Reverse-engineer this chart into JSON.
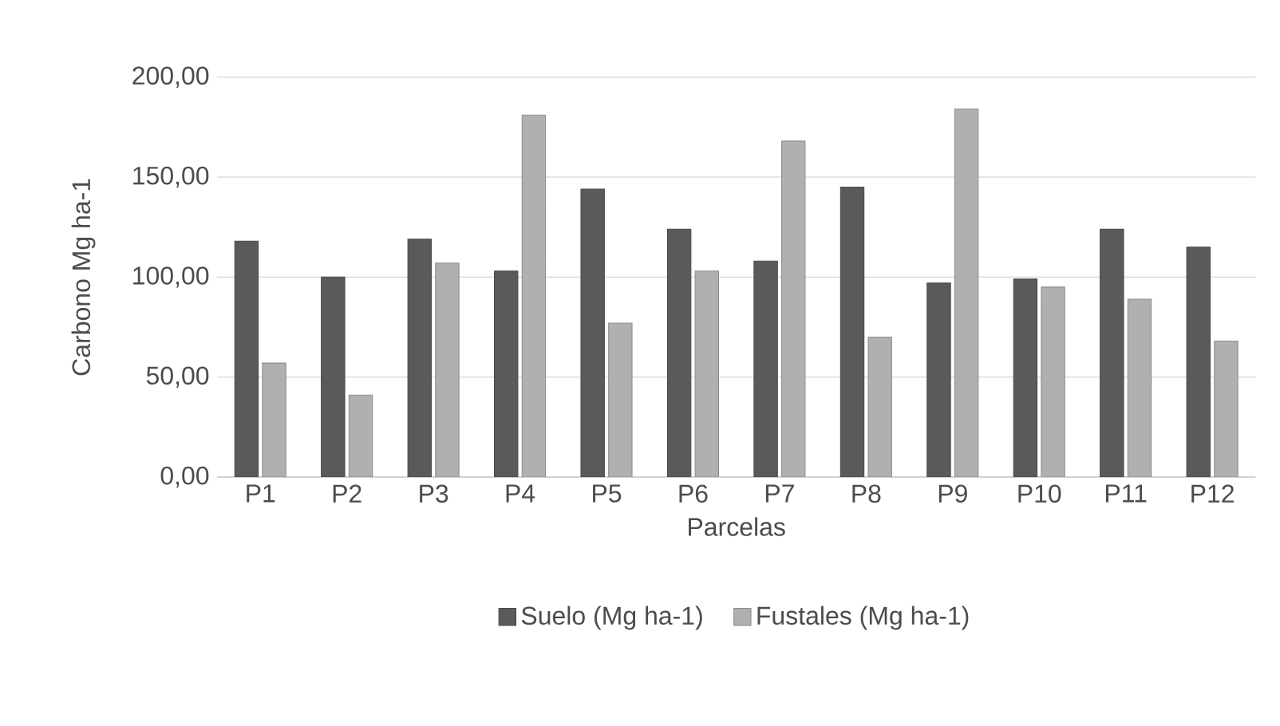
{
  "chart_data": {
    "type": "bar",
    "xlabel": "Parcelas",
    "ylabel": "Carbono Mg ha-1",
    "categories": [
      "P1",
      "P2",
      "P3",
      "P4",
      "P5",
      "P6",
      "P7",
      "P8",
      "P9",
      "P10",
      "P11",
      "P12"
    ],
    "series": [
      {
        "name": "Suelo (Mg ha-1)",
        "color": "#5a5a5a",
        "values": [
          118,
          100,
          119,
          103,
          144,
          124,
          108,
          145,
          97,
          99,
          124,
          115
        ]
      },
      {
        "name": "Fustales (Mg ha-1)",
        "color": "#b0b0b0",
        "values": [
          57,
          41,
          107,
          181,
          77,
          103,
          168,
          70,
          184,
          95,
          89,
          68
        ]
      }
    ],
    "ylim": [
      0,
      200
    ],
    "yticks": [
      {
        "value": 0,
        "label": "0,00"
      },
      {
        "value": 50,
        "label": "50,00"
      },
      {
        "value": 100,
        "label": "100,00"
      },
      {
        "value": 150,
        "label": "150,00"
      },
      {
        "value": 200,
        "label": "200,00"
      }
    ],
    "grid": "y",
    "legend": "bottom"
  }
}
